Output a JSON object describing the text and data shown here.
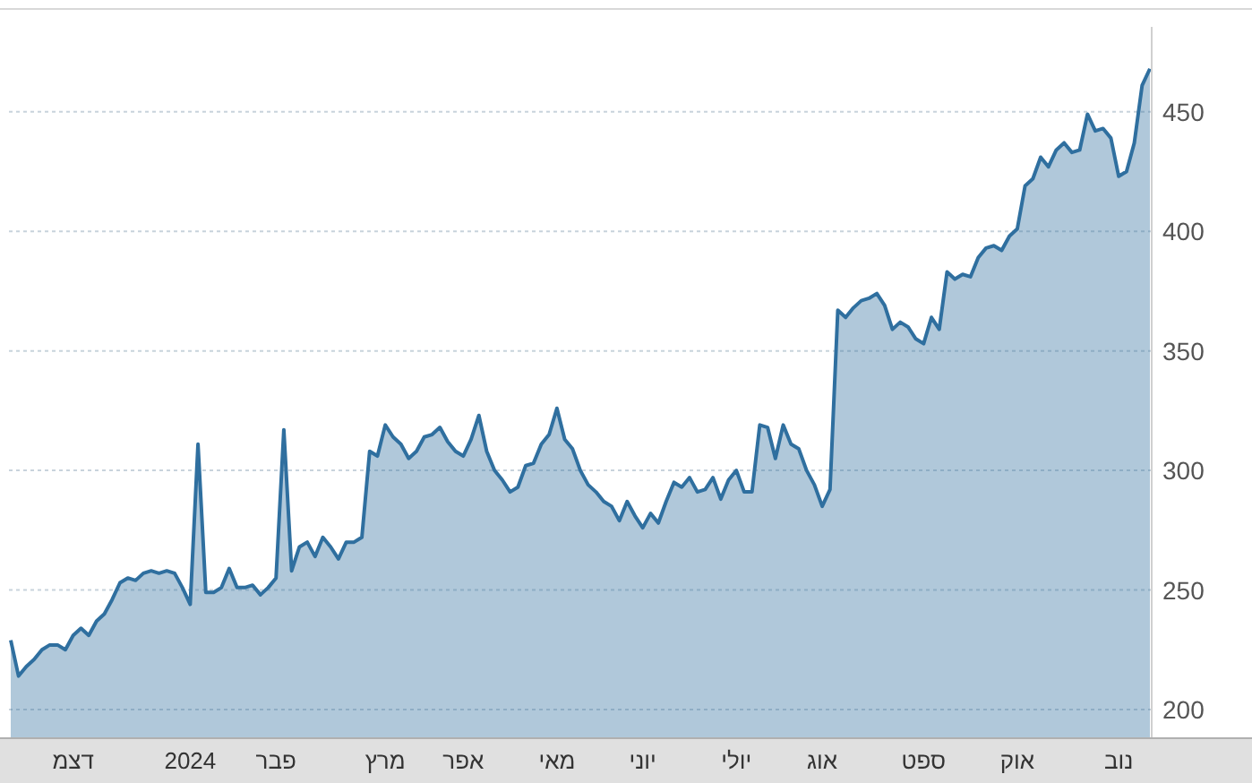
{
  "chart_data": {
    "type": "area",
    "categories": [
      null,
      null,
      null,
      null,
      null,
      null,
      null,
      null,
      "דצמ",
      null,
      null,
      null,
      null,
      null,
      null,
      null,
      null,
      null,
      null,
      null,
      null,
      null,
      null,
      "2024",
      null,
      null,
      null,
      null,
      null,
      null,
      null,
      null,
      null,
      null,
      "פבר",
      null,
      null,
      null,
      null,
      null,
      null,
      null,
      null,
      null,
      null,
      null,
      null,
      null,
      "מרץ",
      null,
      null,
      null,
      null,
      null,
      null,
      null,
      null,
      null,
      "אפר",
      null,
      null,
      null,
      null,
      null,
      null,
      null,
      null,
      null,
      null,
      null,
      "מאי",
      null,
      null,
      null,
      null,
      null,
      null,
      null,
      null,
      null,
      null,
      "יוני",
      null,
      null,
      null,
      null,
      null,
      null,
      null,
      null,
      null,
      null,
      null,
      "יולי",
      null,
      null,
      null,
      null,
      null,
      null,
      null,
      null,
      null,
      null,
      "אוג",
      null,
      null,
      null,
      null,
      null,
      null,
      null,
      null,
      null,
      null,
      null,
      null,
      "ספט",
      null,
      null,
      null,
      null,
      null,
      null,
      null,
      null,
      null,
      null,
      null,
      "אוק",
      null,
      null,
      null,
      null,
      null,
      null,
      null,
      null,
      null,
      null,
      null,
      null,
      "נוב",
      null,
      null,
      null,
      null
    ],
    "series": [
      {
        "color": "#2f6f9f",
        "values": [
          229,
          214,
          218,
          221,
          225,
          227,
          227,
          225,
          231,
          234,
          231,
          237,
          240,
          246,
          253,
          255,
          254,
          257,
          258,
          257,
          258,
          257,
          251,
          244,
          311,
          249,
          249,
          251,
          259,
          251,
          251,
          252,
          248,
          251,
          255,
          317,
          258,
          268,
          270,
          264,
          272,
          268,
          263,
          270,
          270,
          272,
          308,
          306,
          319,
          314,
          311,
          305,
          308,
          314,
          315,
          318,
          312,
          308,
          306,
          313,
          323,
          308,
          300,
          296,
          291,
          293,
          302,
          303,
          311,
          315,
          326,
          313,
          309,
          300,
          294,
          291,
          287,
          285,
          279,
          287,
          281,
          276,
          282,
          278,
          287,
          295,
          293,
          297,
          291,
          292,
          297,
          288,
          296,
          300,
          291,
          291,
          319,
          318,
          305,
          319,
          311,
          309,
          300,
          294,
          285,
          292,
          367,
          364,
          368,
          371,
          372,
          374,
          369,
          359,
          362,
          360,
          355,
          353,
          364,
          359,
          383,
          380,
          382,
          381,
          389,
          393,
          394,
          392,
          398,
          401,
          419,
          422,
          431,
          427,
          434,
          437,
          433,
          434,
          449,
          442,
          443,
          439,
          423,
          425,
          437,
          461,
          468
        ]
      }
    ],
    "ylim": [
      188,
      493
    ],
    "yticks": [
      200,
      250,
      300,
      350,
      400,
      450
    ],
    "grid": "y"
  }
}
